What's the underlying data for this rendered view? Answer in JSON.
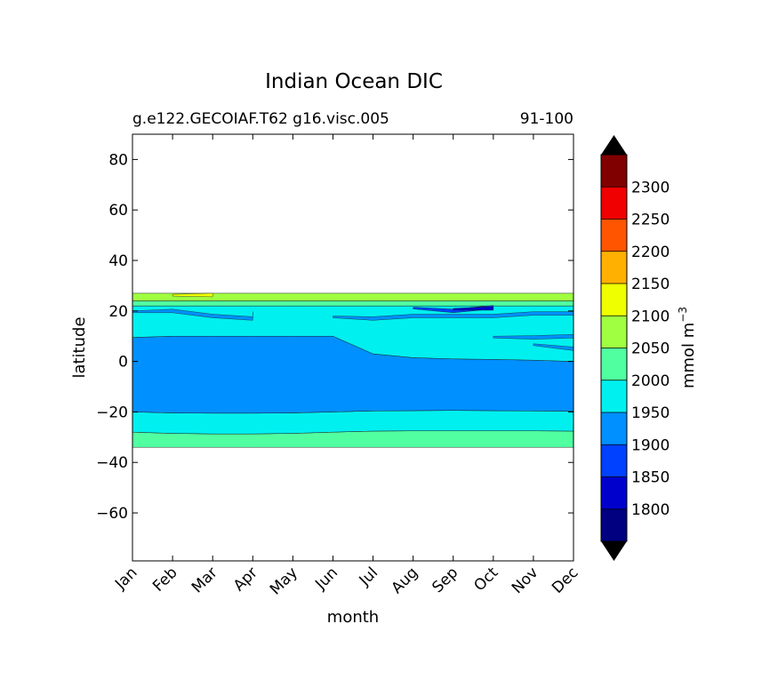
{
  "chart_data": {
    "type": "heatmap",
    "subtype": "filled-contour",
    "title": "Indian Ocean DIC",
    "subtitle_left": "g.e122.GECOIAF.T62 g16.visc.005",
    "subtitle_right": "91-100",
    "xlabel": "month",
    "ylabel": "latitude",
    "x_categories": [
      "Jan",
      "Feb",
      "Mar",
      "Apr",
      "May",
      "Jun",
      "Jul",
      "Aug",
      "Sep",
      "Oct",
      "Nov",
      "Dec"
    ],
    "yticks": [
      80,
      60,
      40,
      20,
      0,
      -20,
      -40,
      -60
    ],
    "yticklabels": [
      "80",
      "60",
      "40",
      "20",
      "0",
      "−20",
      "−40",
      "−60"
    ],
    "ylim": [
      -79,
      90
    ],
    "colorbar": {
      "label_text": "mmol m",
      "label_exponent": "−3",
      "tick_values": [
        "1800",
        "1850",
        "1900",
        "1950",
        "2000",
        "2050",
        "2100",
        "2150",
        "2200",
        "2250",
        "2300"
      ],
      "levels": [
        1750,
        1800,
        1850,
        1900,
        1950,
        2000,
        2050,
        2100,
        2150,
        2200,
        2250,
        2300,
        2350
      ],
      "colors": [
        "#000080",
        "#0000cd",
        "#0040ff",
        "#0090ff",
        "#00f0f0",
        "#50ffa0",
        "#a0ff40",
        "#f0ff00",
        "#ffb000",
        "#ff5500",
        "#f00000",
        "#800000"
      ],
      "extend": "both",
      "extension_color": "#000000"
    },
    "bands": [
      {
        "value_range": "2000-2050",
        "from_lat": -34,
        "to_lat": [
          -28,
          -28.5,
          -28.7,
          -28.7,
          -28.5,
          -28,
          -27.6,
          -27.5,
          -27.5,
          -27.5,
          -27.5,
          -27.6
        ]
      },
      {
        "value_range": "1950-2000",
        "from_lat": [
          -28,
          -28.5,
          -28.7,
          -28.7,
          -28.5,
          -28,
          -27.6,
          -27.5,
          -27.5,
          -27.5,
          -27.5,
          -27.6
        ],
        "to_lat": [
          -20,
          -20.4,
          -20.5,
          -20.5,
          -20.4,
          -20,
          -19.6,
          -19.5,
          -19.4,
          -19.5,
          -19.6,
          -19.7
        ]
      },
      {
        "value_range": "1900-1950",
        "from_lat": [
          -20,
          -20.4,
          -20.5,
          -20.5,
          -20.4,
          -20,
          -19.6,
          -19.5,
          -19.4,
          -19.5,
          -19.6,
          -19.7
        ],
        "to_lat": [
          9.5,
          10,
          10,
          10,
          10,
          10,
          3,
          1.5,
          1,
          0.8,
          0.5,
          0
        ]
      },
      {
        "value_range": "1950-2000",
        "from_lat": [
          9.5,
          10,
          10,
          10,
          10,
          10,
          3,
          1.5,
          1,
          0.8,
          0.5,
          0
        ],
        "to_lat": [
          22,
          22,
          22,
          22,
          22,
          22,
          22,
          22,
          22,
          22,
          22,
          22
        ]
      },
      {
        "value_range": "2000-2050",
        "from_lat": 22,
        "to_lat": 24
      },
      {
        "value_range": "2050-2100",
        "from_lat": 24,
        "to_lat": 27
      }
    ],
    "patches": [
      {
        "value_range": "1900-1950",
        "x": [
          "Jan",
          "Feb",
          "Mar",
          "Apr",
          "Apr"
        ],
        "lat": [
          20,
          20,
          18,
          17,
          19
        ]
      },
      {
        "value_range": "1900-1950",
        "x": [
          "Jun",
          "Jul",
          "Aug",
          "Sep",
          "Oct",
          "Nov",
          "Dec"
        ],
        "lat": [
          18,
          17,
          18,
          18,
          18,
          19,
          19
        ]
      },
      {
        "value_range": "1850-1900",
        "x": [
          "Aug",
          "Sep",
          "Oct"
        ],
        "lat": [
          21.5,
          20,
          21.5
        ]
      },
      {
        "value_range": "1800-1850",
        "x": [
          "Sep",
          "Oct"
        ],
        "lat": [
          21,
          21
        ]
      },
      {
        "value_range": "1900-1950",
        "x": [
          "Oct",
          "Nov",
          "Dec"
        ],
        "lat": [
          10,
          9.5,
          10
        ]
      },
      {
        "value_range": "1900-1950",
        "x": [
          "Nov",
          "Dec"
        ],
        "lat": [
          7,
          5
        ]
      },
      {
        "value_range": "2100-2150",
        "x": [
          "Feb",
          "Mar"
        ],
        "lat": [
          26.6,
          26.3
        ]
      }
    ]
  }
}
